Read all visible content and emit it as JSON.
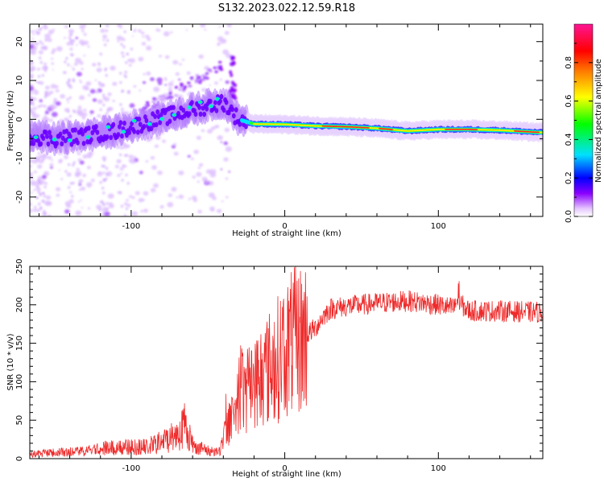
{
  "title": "S132.2023.022.12.59.R18",
  "chart_data": [
    {
      "type": "heatmap",
      "name": "spectrogram",
      "xlabel": "Height of straight line (km)",
      "ylabel": "Frequency (Hz)",
      "xlim": [
        -166,
        168
      ],
      "ylim": [
        -25,
        24.5
      ],
      "x_ticks": [
        -100,
        0,
        100
      ],
      "x_tick_labels": [
        "-100",
        "0",
        "100"
      ],
      "y_ticks": [
        -20,
        -10,
        0,
        10,
        20
      ],
      "y_tick_labels": [
        "-20",
        "-10",
        "0",
        "10",
        "20"
      ],
      "ridge_x": [
        -166,
        -150,
        -130,
        -110,
        -90,
        -70,
        -50,
        -40,
        -30,
        -20,
        0,
        20,
        40,
        60,
        80,
        100,
        120,
        140,
        168
      ],
      "ridge_y": [
        -4.2,
        -5.0,
        -4.2,
        -3.0,
        -0.8,
        1.5,
        3.5,
        4.5,
        0.0,
        -1.2,
        -1.3,
        -1.7,
        -1.9,
        -2.3,
        -3.0,
        -2.6,
        -2.6,
        -2.8,
        -3.4
      ],
      "colorbar": {
        "label": "Normalized spectral amplitude",
        "range": [
          0,
          1
        ],
        "ticks": [
          0.0,
          0.2,
          0.4,
          0.6,
          0.8
        ],
        "tick_labels": [
          "0.0",
          "0.2",
          "0.4",
          "0.6",
          "0.8"
        ],
        "colors": [
          "#ffffff",
          "#e6c8ff",
          "#8a00ff",
          "#0000ff",
          "#00e0ff",
          "#00ff00",
          "#ffff00",
          "#ff8000",
          "#ff0000",
          "#ff1493"
        ]
      }
    },
    {
      "type": "line",
      "name": "snr",
      "xlabel": "Height of straight line (km)",
      "ylabel": "SNR (10 * v/v)",
      "xlim": [
        -166,
        168
      ],
      "ylim": [
        0,
        250
      ],
      "x_ticks": [
        -100,
        0,
        100
      ],
      "x_tick_labels": [
        "-100",
        "0",
        "100"
      ],
      "y_ticks": [
        0,
        50,
        100,
        150,
        200,
        250
      ],
      "y_tick_labels": [
        "0",
        "50",
        "100",
        "150",
        "200",
        "250"
      ],
      "color": "#ee2a2a",
      "envelope_x": [
        -166,
        -130,
        -110,
        -90,
        -80,
        -70,
        -65,
        -60,
        -50,
        -42,
        -40,
        -35,
        -30,
        -25,
        -20,
        -15,
        -10,
        -5,
        0,
        10,
        20,
        25,
        30,
        40,
        60,
        80,
        100,
        110,
        112,
        115,
        120,
        140,
        168
      ],
      "envelope_y": [
        6,
        10,
        15,
        15,
        22,
        32,
        45,
        18,
        10,
        10,
        25,
        55,
        85,
        90,
        100,
        110,
        118,
        128,
        145,
        155,
        170,
        185,
        195,
        198,
        202,
        205,
        200,
        195,
        205,
        200,
        192,
        192,
        190
      ]
    }
  ]
}
